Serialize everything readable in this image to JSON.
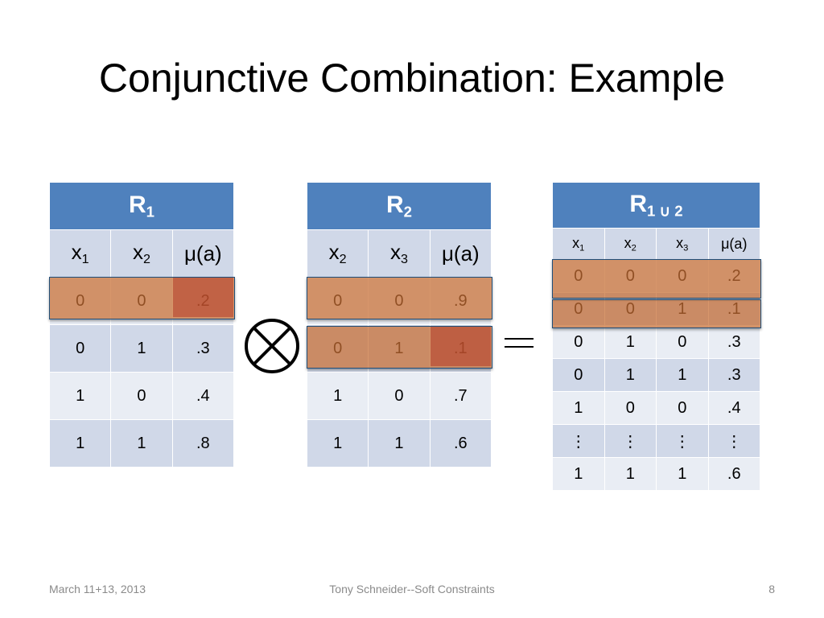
{
  "slide": {
    "title": "Conjunctive Combination: Example",
    "footer": {
      "date": "March 11+13, 2013",
      "author": "Tony Schneider--Soft Constraints",
      "page": "8"
    }
  },
  "colors": {
    "header": "#4f81bd",
    "row_band_dark": "#d0d8e8",
    "row_band_light": "#e9edf4",
    "highlight": "#c86e32",
    "highlight_dark": "#b43c28"
  },
  "tables": {
    "r1": {
      "name": "R",
      "sub": "1",
      "columns": [
        {
          "v": "x",
          "s": "1"
        },
        {
          "v": "x",
          "s": "2"
        },
        {
          "v": "μ(a)",
          "s": ""
        }
      ],
      "rows": [
        [
          "0",
          "0",
          ".2"
        ],
        [
          "0",
          "1",
          ".3"
        ],
        [
          "1",
          "0",
          ".4"
        ],
        [
          "1",
          "1",
          ".8"
        ]
      ]
    },
    "r2": {
      "name": "R",
      "sub": "2",
      "columns": [
        {
          "v": "x",
          "s": "2"
        },
        {
          "v": "x",
          "s": "3"
        },
        {
          "v": "μ(a)",
          "s": ""
        }
      ],
      "rows": [
        [
          "0",
          "0",
          ".9"
        ],
        [
          "0",
          "1",
          ".1"
        ],
        [
          "1",
          "0",
          ".7"
        ],
        [
          "1",
          "1",
          ".6"
        ]
      ]
    },
    "r3": {
      "name": "R",
      "sub": "1 ∪ 2",
      "columns": [
        {
          "v": "x",
          "s": "1"
        },
        {
          "v": "x",
          "s": "2"
        },
        {
          "v": "x",
          "s": "3"
        },
        {
          "v": "μ(a)",
          "s": ""
        }
      ],
      "rows": [
        [
          "0",
          "0",
          "0",
          ".2"
        ],
        [
          "0",
          "0",
          "1",
          ".1"
        ],
        [
          "0",
          "1",
          "0",
          ".3"
        ],
        [
          "0",
          "1",
          "1",
          ".3"
        ],
        [
          "1",
          "0",
          "0",
          ".4"
        ],
        [
          "⋮",
          "⋮",
          "⋮",
          "⋮"
        ],
        [
          "1",
          "1",
          "1",
          ".6"
        ]
      ]
    }
  },
  "operators": {
    "combine": "otimes-icon",
    "equals": "equals-icon"
  }
}
